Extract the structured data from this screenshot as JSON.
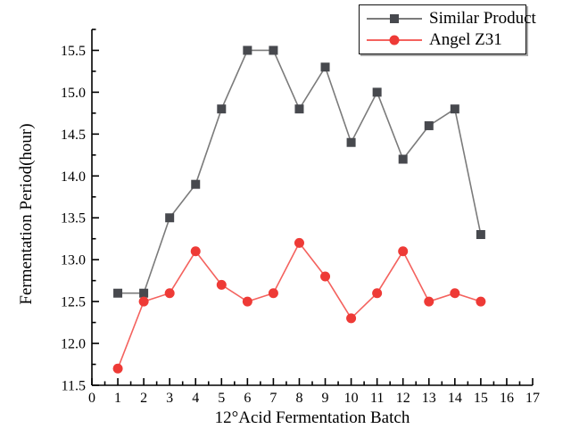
{
  "figure": {
    "background": "#ffffff"
  },
  "chart_data": {
    "type": "line",
    "title": "",
    "xlabel": "12°Acid Fermentation Batch",
    "ylabel": "Fermentation Period(hour)",
    "xlim": [
      0,
      17
    ],
    "ylim": [
      11.5,
      15.75
    ],
    "x_major_step": 1,
    "x_minor_step": 0.5,
    "y_major_step": 0.5,
    "y_minor_step": 0.25,
    "grid": false,
    "legend_position": "top-right",
    "axis_color": "#000000",
    "x": [
      1,
      2,
      3,
      4,
      5,
      6,
      7,
      8,
      9,
      10,
      11,
      12,
      13,
      14,
      15
    ],
    "series": [
      {
        "name": "Similar Product",
        "marker": "square",
        "line_color": "#7b7b7b",
        "marker_color": "#47494e",
        "values": [
          12.6,
          12.6,
          13.5,
          13.9,
          14.8,
          15.5,
          15.5,
          14.8,
          15.3,
          14.4,
          15.0,
          14.2,
          14.6,
          14.8,
          13.3
        ]
      },
      {
        "name": "Angel Z31",
        "marker": "circle",
        "line_color": "#f4625e",
        "marker_color": "#ee3a36",
        "values": [
          11.7,
          12.5,
          12.6,
          13.1,
          12.7,
          12.5,
          12.6,
          13.2,
          12.8,
          12.3,
          12.6,
          13.1,
          12.5,
          12.6,
          12.5
        ]
      }
    ]
  }
}
